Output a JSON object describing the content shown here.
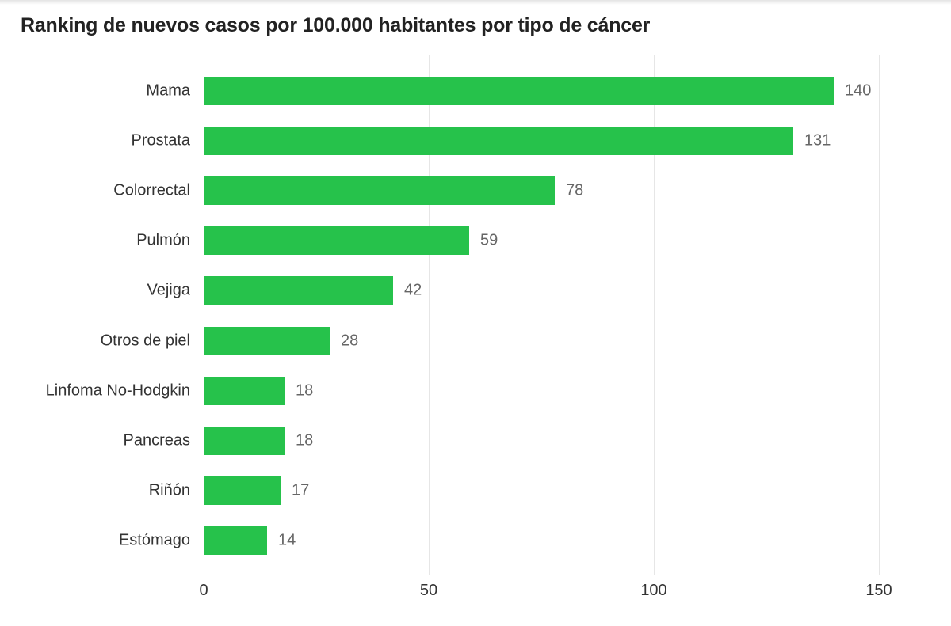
{
  "title": "Ranking de nuevos casos por 100.000 habitantes por tipo de cáncer",
  "colors": {
    "bar": "#26c24b",
    "grid": "#e6e6e6"
  },
  "chart_data": {
    "type": "bar",
    "orientation": "horizontal",
    "title": "Ranking de nuevos casos por 100.000 habitantes por tipo de cáncer",
    "xlabel": "",
    "ylabel": "",
    "categories": [
      "Mama",
      "Prostata",
      "Colorrectal",
      "Pulmón",
      "Vejiga",
      "Otros de piel",
      "Linfoma No-Hodgkin",
      "Pancreas",
      "Riñón",
      "Estómago"
    ],
    "values": [
      140,
      131,
      78,
      59,
      42,
      28,
      18,
      18,
      17,
      14
    ],
    "xlim": [
      0,
      150
    ],
    "xticks": [
      "0",
      "50",
      "100",
      "150"
    ],
    "grid": true,
    "data_labels": true,
    "legend": null
  }
}
